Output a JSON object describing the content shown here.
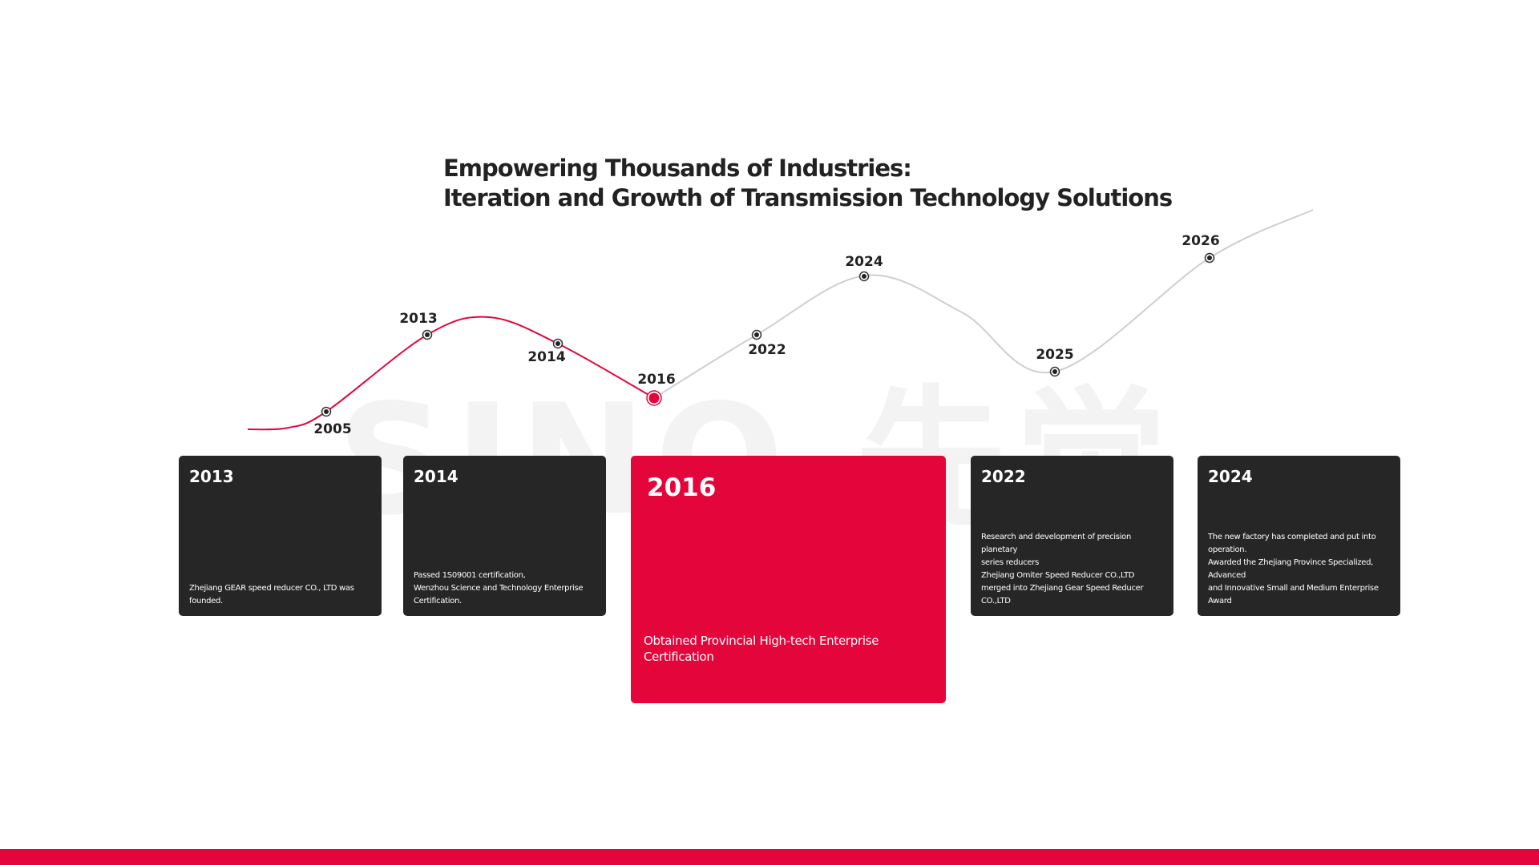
{
  "header": {
    "title_lines": [
      "Empowering Thousands of Industries:",
      "Iteration and Growth of Transmission Technology Solutions"
    ]
  },
  "watermark": "SINO.先觉",
  "timeline": {
    "points": [
      {
        "label": "2005"
      },
      {
        "label": "2013"
      },
      {
        "label": "2014"
      },
      {
        "label": "2016"
      },
      {
        "label": "2022"
      },
      {
        "label": "2024"
      },
      {
        "label": "2025"
      },
      {
        "label": "2026"
      }
    ]
  },
  "cards": [
    {
      "year": "2013",
      "lines": [
        "Zhejiang GEAR speed reducer CO., LTD was founded."
      ]
    },
    {
      "year": "2014",
      "lines": [
        "Passed 1S09001 certification,",
        "Wenzhou Science and Technology Enterprise",
        "Certification."
      ]
    },
    {
      "year": "2016",
      "lines": [
        "Obtained Provincial High-tech Enterprise Certification"
      ]
    },
    {
      "year": "2022",
      "lines": [
        "Research and development of precision planetary",
        "series reducers",
        "Zhejiang Omiter Speed Reducer CO.,LTD",
        "merged into Zhejiang Gear Speed Reducer CO.,LTD"
      ]
    },
    {
      "year": "2024",
      "lines": [
        "The new factory has completed and put into operation.",
        "Awarded the Zhejiang Province Specialized, Advanced",
        "and Innovative Small and Medium Enterprise Award"
      ]
    }
  ]
}
